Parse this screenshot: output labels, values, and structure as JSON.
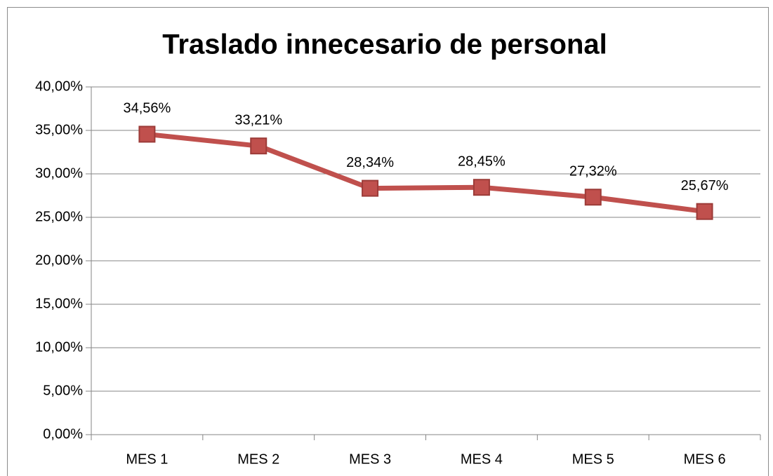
{
  "chart_data": {
    "type": "line",
    "title": "Traslado innecesario de personal",
    "categories": [
      "MES 1",
      "MES 2",
      "MES 3",
      "MES 4",
      "MES 5",
      "MES 6"
    ],
    "series": [
      {
        "name": "Traslado innecesario de personal",
        "color": "#c0504d",
        "values": [
          34.56,
          33.21,
          28.34,
          28.45,
          27.32,
          25.67
        ],
        "value_labels": [
          "34,56%",
          "33,21%",
          "28,34%",
          "28,45%",
          "27,32%",
          "25,67%"
        ]
      }
    ],
    "ylim": [
      0,
      40
    ],
    "yticks": [
      {
        "value": 0,
        "label": "0,00%"
      },
      {
        "value": 5,
        "label": "5,00%"
      },
      {
        "value": 10,
        "label": "10,00%"
      },
      {
        "value": 15,
        "label": "15,00%"
      },
      {
        "value": 20,
        "label": "20,00%"
      },
      {
        "value": 25,
        "label": "25,00%"
      },
      {
        "value": 30,
        "label": "30,00%"
      },
      {
        "value": 35,
        "label": "35,00%"
      },
      {
        "value": 40,
        "label": "40,00%"
      }
    ],
    "grid": true
  }
}
